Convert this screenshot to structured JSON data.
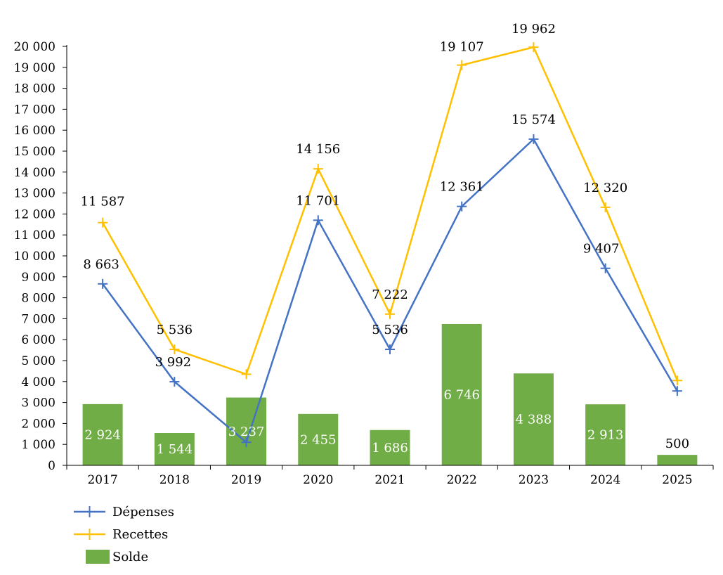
{
  "chart_data": {
    "type": "bar",
    "categories": [
      "2017",
      "2018",
      "2019",
      "2020",
      "2021",
      "2022",
      "2023",
      "2024",
      "2025"
    ],
    "series": [
      {
        "name": "Dépenses",
        "kind": "line",
        "color": "#4472C4",
        "values": [
          8663,
          3992,
          1100,
          11701,
          5536,
          12361,
          15574,
          9407,
          3550
        ],
        "labels": [
          "8 663",
          "3 992",
          "",
          "11 701",
          "5 536",
          "12 361",
          "15 574",
          "9 407",
          ""
        ]
      },
      {
        "name": "Recettes",
        "kind": "line",
        "color": "#FFC000",
        "values": [
          11587,
          5536,
          4350,
          14156,
          7222,
          19107,
          19962,
          12320,
          4050
        ],
        "labels": [
          "11 587",
          "5 536",
          "",
          "14 156",
          "7 222",
          "19 107",
          "19 962",
          "12 320",
          ""
        ]
      },
      {
        "name": "Solde",
        "kind": "bar",
        "color": "#70AD47",
        "values": [
          2924,
          1544,
          3237,
          2455,
          1686,
          6746,
          4388,
          2913,
          500
        ],
        "labels": [
          "2 924",
          "1 544",
          "3 237",
          "2 455",
          "1 686",
          "6 746",
          "4 388",
          "2 913",
          "500"
        ]
      }
    ],
    "ylim": [
      0,
      20000
    ],
    "yticks": [
      0,
      1000,
      2000,
      3000,
      4000,
      5000,
      6000,
      7000,
      8000,
      9000,
      10000,
      11000,
      12000,
      13000,
      14000,
      15000,
      16000,
      17000,
      18000,
      19000,
      20000
    ],
    "ytick_labels": [
      "0",
      "1 000",
      "2 000",
      "3 000",
      "4 000",
      "5 000",
      "6 000",
      "7 000",
      "8 000",
      "9 000",
      "10 000",
      "11 000",
      "12 000",
      "13 000",
      "14 000",
      "15 000",
      "16 000",
      "17 000",
      "18 000",
      "19 000",
      "20 000"
    ],
    "grid": false,
    "legend_position": "bottom-left"
  }
}
